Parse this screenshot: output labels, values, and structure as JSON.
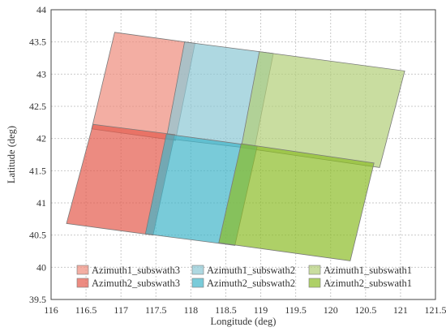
{
  "chart_data": {
    "type": "area",
    "title": "",
    "xlabel": "Longitude (deg)",
    "ylabel": "Latitude (deg)",
    "xlim": [
      116,
      121.5
    ],
    "ylim": [
      39.5,
      44
    ],
    "xticks": [
      "116",
      "116.5",
      "117",
      "117.5",
      "118",
      "118.5",
      "119",
      "119.5",
      "120",
      "120.5",
      "121",
      "121.5"
    ],
    "yticks": [
      "39.5",
      "40",
      "40.5",
      "41",
      "41.5",
      "42",
      "42.5",
      "43",
      "43.5",
      "44"
    ],
    "grid": true,
    "legend_position": "bottom",
    "series": [
      {
        "name": "Azimuth1_subswath3",
        "color": "#ee8c7c",
        "opacity": 0.7,
        "polygon": [
          [
            116.91,
            43.65
          ],
          [
            118.06,
            43.48
          ],
          [
            117.78,
            41.97
          ],
          [
            116.58,
            42.15
          ]
        ]
      },
      {
        "name": "Azimuth1_subswath2",
        "color": "#8bc8d4",
        "opacity": 0.7,
        "polygon": [
          [
            117.91,
            43.5
          ],
          [
            119.18,
            43.32
          ],
          [
            118.91,
            41.84
          ],
          [
            117.65,
            42.0
          ]
        ]
      },
      {
        "name": "Azimuth1_subswath1",
        "color": "#b2cf78",
        "opacity": 0.7,
        "polygon": [
          [
            118.98,
            43.35
          ],
          [
            121.06,
            43.05
          ],
          [
            120.7,
            41.55
          ],
          [
            118.72,
            41.86
          ]
        ]
      },
      {
        "name": "Azimuth2_subswath3",
        "color": "#e45a4c",
        "opacity": 0.7,
        "polygon": [
          [
            116.6,
            42.22
          ],
          [
            117.77,
            42.06
          ],
          [
            117.46,
            40.5
          ],
          [
            116.22,
            40.68
          ]
        ]
      },
      {
        "name": "Azimuth2_subswath2",
        "color": "#40b5c9",
        "opacity": 0.7,
        "polygon": [
          [
            117.65,
            42.07
          ],
          [
            118.95,
            41.88
          ],
          [
            118.63,
            40.34
          ],
          [
            117.35,
            40.52
          ]
        ]
      },
      {
        "name": "Azimuth2_subswath1",
        "color": "#8cbc26",
        "opacity": 0.7,
        "polygon": [
          [
            118.72,
            41.92
          ],
          [
            120.62,
            41.62
          ],
          [
            120.28,
            40.1
          ],
          [
            118.4,
            40.38
          ]
        ]
      }
    ]
  }
}
